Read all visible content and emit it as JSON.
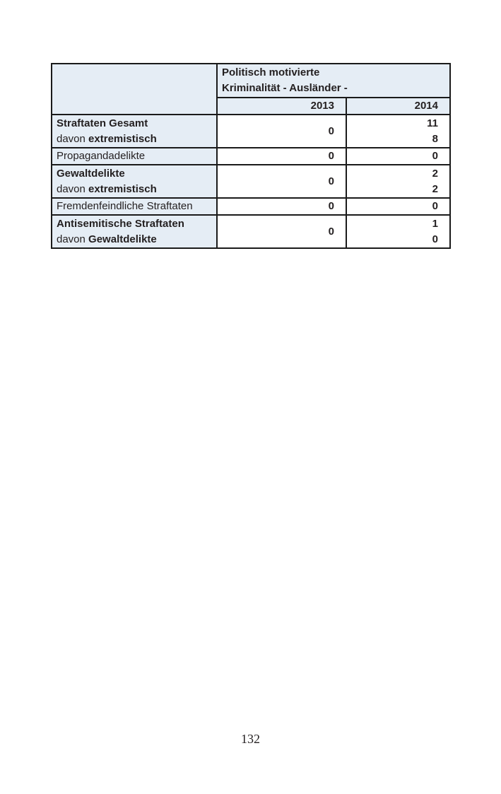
{
  "page": {
    "number": "132"
  },
  "colors": {
    "cell_blue": "#e5edf5",
    "border": "#1a1a1a",
    "text": "#231f20",
    "page_bg": "#ffffff"
  },
  "table": {
    "title_line1": "Politisch motivierte",
    "title_line2": "Kriminalität - Ausländer -",
    "columns": [
      "2013",
      "2014"
    ],
    "rows": [
      {
        "label": "Straftaten Gesamt",
        "sub_prefix": "davon",
        "sub_bold": "extremistisch",
        "v2013": "0",
        "v2014": [
          "11",
          "8"
        ]
      },
      {
        "label": "Propagandadelikte",
        "v2013": "0",
        "v2014": [
          "0"
        ]
      },
      {
        "label": "Gewaltdelikte",
        "sub_prefix": "davon",
        "sub_bold": "extremistisch",
        "v2013": "0",
        "v2014": [
          "2",
          "2"
        ]
      },
      {
        "label": "Fremdenfeindliche Straftaten",
        "v2013": "0",
        "v2014": [
          "0"
        ]
      },
      {
        "label": "Antisemitische Straftaten",
        "sub_prefix": "davon",
        "sub_bold": "Gewaltdelikte",
        "v2013": "0",
        "v2014": [
          "1",
          "0"
        ]
      }
    ]
  }
}
